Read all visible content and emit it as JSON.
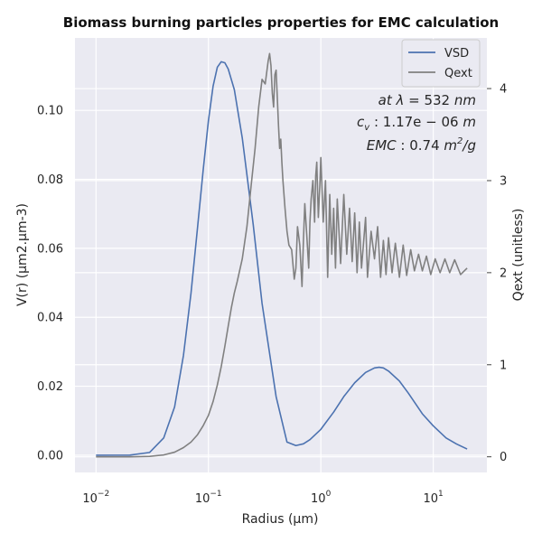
{
  "chart_data": {
    "type": "line",
    "title": "Biomass burning particles properties for EMC calculation",
    "xlabel": "Radius (μm)",
    "ylabel": "V(r) (μm2.μm-3)",
    "y2label": "Qext (unitless)",
    "xscale": "log",
    "xlim": [
      0.0065,
      30
    ],
    "ylim": [
      -0.005,
      0.121
    ],
    "y2lim": [
      -0.17,
      4.55
    ],
    "x_ticks": [
      {
        "value": 0.01,
        "base": "10",
        "exp": "−2"
      },
      {
        "value": 0.1,
        "base": "10",
        "exp": "−1"
      },
      {
        "value": 1,
        "base": "10",
        "exp": "0"
      },
      {
        "value": 10,
        "base": "10",
        "exp": "1"
      }
    ],
    "y_ticks": [
      {
        "value": 0.0,
        "label": "0.00"
      },
      {
        "value": 0.02,
        "label": "0.02"
      },
      {
        "value": 0.04,
        "label": "0.04"
      },
      {
        "value": 0.06,
        "label": "0.06"
      },
      {
        "value": 0.08,
        "label": "0.08"
      },
      {
        "value": 0.1,
        "label": "0.10"
      }
    ],
    "y2_ticks": [
      {
        "value": 0,
        "label": "0"
      },
      {
        "value": 1,
        "label": "1"
      },
      {
        "value": 2,
        "label": "2"
      },
      {
        "value": 3,
        "label": "3"
      },
      {
        "value": 4,
        "label": "4"
      }
    ],
    "grid": true,
    "legend_position": "top-right",
    "series": [
      {
        "name": "VSD",
        "axis": "left",
        "color": "#4c72b0",
        "x": [
          0.01,
          0.02,
          0.03,
          0.04,
          0.05,
          0.06,
          0.07,
          0.08,
          0.09,
          0.1,
          0.11,
          0.12,
          0.13,
          0.14,
          0.15,
          0.17,
          0.2,
          0.25,
          0.3,
          0.4,
          0.5,
          0.6,
          0.7,
          0.8,
          1.0,
          1.3,
          1.6,
          2.0,
          2.5,
          3.0,
          3.3,
          3.6,
          4.0,
          5.0,
          6.0,
          8.0,
          10.0,
          13.0,
          16.0,
          20.0
        ],
        "y": [
          0.0,
          2e-05,
          0.0008,
          0.005,
          0.014,
          0.029,
          0.047,
          0.066,
          0.083,
          0.097,
          0.107,
          0.1125,
          0.1141,
          0.1138,
          0.112,
          0.106,
          0.092,
          0.067,
          0.044,
          0.017,
          0.0038,
          0.0028,
          0.0033,
          0.0045,
          0.0075,
          0.0125,
          0.017,
          0.021,
          0.024,
          0.0253,
          0.0255,
          0.0253,
          0.0244,
          0.0215,
          0.018,
          0.012,
          0.0085,
          0.005,
          0.0033,
          0.0018
        ]
      },
      {
        "name": "Qext",
        "axis": "right",
        "color": "#808080",
        "x": [
          0.01,
          0.02,
          0.03,
          0.04,
          0.05,
          0.06,
          0.07,
          0.08,
          0.09,
          0.1,
          0.11,
          0.12,
          0.13,
          0.14,
          0.15,
          0.16,
          0.17,
          0.18,
          0.2,
          0.22,
          0.24,
          0.26,
          0.28,
          0.3,
          0.32,
          0.34,
          0.35,
          0.36,
          0.37,
          0.38,
          0.39,
          0.4,
          0.41,
          0.42,
          0.43,
          0.44,
          0.45,
          0.46,
          0.48,
          0.5,
          0.52,
          0.55,
          0.58,
          0.6,
          0.62,
          0.65,
          0.68,
          0.7,
          0.72,
          0.75,
          0.78,
          0.8,
          0.82,
          0.85,
          0.88,
          0.9,
          0.92,
          0.95,
          0.98,
          1.0,
          1.05,
          1.1,
          1.15,
          1.2,
          1.25,
          1.3,
          1.35,
          1.4,
          1.5,
          1.6,
          1.7,
          1.8,
          1.9,
          2.0,
          2.1,
          2.2,
          2.3,
          2.5,
          2.6,
          2.8,
          3.0,
          3.2,
          3.4,
          3.6,
          3.8,
          4.0,
          4.3,
          4.6,
          5.0,
          5.4,
          5.8,
          6.3,
          6.8,
          7.4,
          8.0,
          8.7,
          9.5,
          10.4,
          11.5,
          12.7,
          14.0,
          15.5,
          17.5,
          20.0
        ],
        "y": [
          0.0,
          0.0,
          0.005,
          0.02,
          0.05,
          0.1,
          0.16,
          0.24,
          0.34,
          0.45,
          0.6,
          0.78,
          0.98,
          1.2,
          1.42,
          1.62,
          1.78,
          1.9,
          2.15,
          2.5,
          2.95,
          3.35,
          3.8,
          4.1,
          4.05,
          4.3,
          4.38,
          4.25,
          3.95,
          3.8,
          4.15,
          4.2,
          3.9,
          3.6,
          3.35,
          3.45,
          3.2,
          3.0,
          2.7,
          2.45,
          2.3,
          2.25,
          1.93,
          2.05,
          2.5,
          2.3,
          1.85,
          2.35,
          2.75,
          2.4,
          2.05,
          2.55,
          2.8,
          3.0,
          2.55,
          3.05,
          3.2,
          2.6,
          2.95,
          3.25,
          2.55,
          3.0,
          1.95,
          2.85,
          2.2,
          2.7,
          2.05,
          2.8,
          2.1,
          2.85,
          2.2,
          2.7,
          2.12,
          2.65,
          2.0,
          2.55,
          2.05,
          2.6,
          1.95,
          2.45,
          2.15,
          2.5,
          1.95,
          2.35,
          1.98,
          2.38,
          2.0,
          2.32,
          1.95,
          2.3,
          1.97,
          2.25,
          2.02,
          2.2,
          2.02,
          2.18,
          1.98,
          2.15,
          2.0,
          2.15,
          2.0,
          2.14,
          1.98,
          2.05
        ]
      }
    ],
    "annotations": [
      {
        "pre": "at ",
        "sym": "λ",
        "rest": " = 532 ",
        "unit": "nm"
      },
      {
        "pre": "",
        "sym": "c",
        "sub": "v",
        "rest": " : 1.17e − 06 ",
        "unit": "m"
      },
      {
        "pre": "EMC",
        "sym": "",
        "rest": " : 0.74 ",
        "unit": "m",
        "sup": "2",
        "tail": "/g"
      }
    ]
  }
}
